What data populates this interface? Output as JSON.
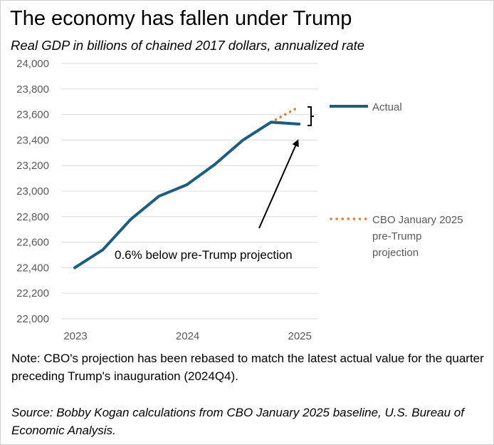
{
  "title": "The economy has fallen under Trump",
  "subtitle": "Real GDP in billions of chained 2017 dollars, annualized rate",
  "chart_data": {
    "type": "line",
    "title": "The economy has fallen under Trump",
    "ylabel": "Real GDP in billions of chained 2017 dollars, annualized rate",
    "xlabel": "",
    "ylim": [
      22000,
      24000
    ],
    "y_ticks": [
      "22,000",
      "22,200",
      "22,400",
      "22,600",
      "22,800",
      "23,000",
      "23,200",
      "23,400",
      "23,600",
      "23,800",
      "24,000"
    ],
    "y_tick_values": [
      22000,
      22200,
      22400,
      22600,
      22800,
      23000,
      23200,
      23400,
      23600,
      23800,
      24000
    ],
    "x_ticks": [
      "2023",
      "2024",
      "2025"
    ],
    "x_tick_index": [
      0,
      4,
      8
    ],
    "x_categories": [
      "2023Q1",
      "2023Q2",
      "2023Q3",
      "2023Q4",
      "2024Q1",
      "2024Q2",
      "2024Q3",
      "2024Q4",
      "2025Q1"
    ],
    "grid": true,
    "series": [
      {
        "name": "Actual",
        "style": "solid",
        "color": "#1f5c7d",
        "x_index": [
          0,
          1,
          2,
          3,
          4,
          5,
          6,
          7,
          8
        ],
        "values": [
          22400,
          22540,
          22780,
          22960,
          23050,
          23210,
          23400,
          23540,
          23525
        ]
      },
      {
        "name": "CBO January 2025 pre-Trump projection",
        "style": "dotted",
        "color": "#e07b39",
        "x_index": [
          7,
          8
        ],
        "values": [
          23540,
          23660
        ]
      }
    ],
    "legend": [
      {
        "label": "Actual",
        "color": "#1f5c7d",
        "style": "solid"
      },
      {
        "label_lines": [
          "CBO January 2025",
          "pre-Trump",
          "projection"
        ],
        "color": "#e07b39",
        "style": "dotted"
      }
    ],
    "legend_position": "right",
    "annotation": "0.6% below pre-Trump projection"
  },
  "note": "Note: CBO's projection has been rebased to match the latest actual value for the quarter preceding Trump's inauguration (2024Q4).",
  "source": "Source: Bobby Kogan calculations from CBO January 2025 baseline, U.S. Bureau of Economic Analysis."
}
